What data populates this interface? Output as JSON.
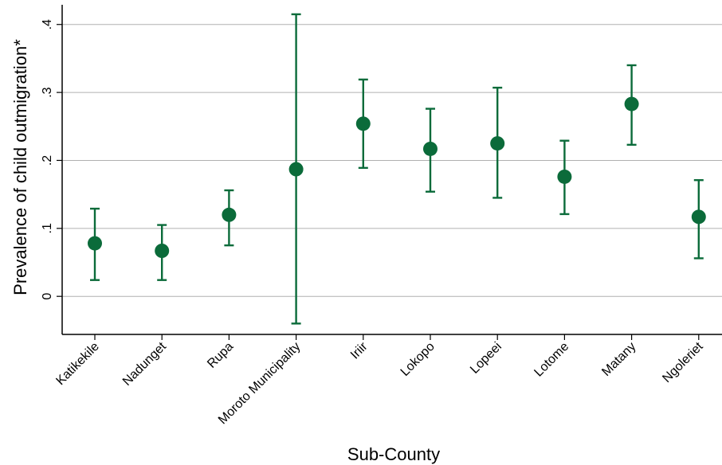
{
  "chart_data": {
    "type": "scatter",
    "title": "",
    "xlabel": "Sub-County",
    "ylabel": "Prevalence of child outmigration*",
    "categories": [
      "Katikekile",
      "Nadunget",
      "Rupa",
      "Moroto Municipality",
      "Iriir",
      "Lokopo",
      "Lopeei",
      "Lotome",
      "Matany",
      "Ngoleriet"
    ],
    "series": [
      {
        "values": [
          0.078,
          0.067,
          0.12,
          0.187,
          0.254,
          0.217,
          0.225,
          0.176,
          0.283,
          0.117
        ],
        "lower": [
          0.024,
          0.024,
          0.075,
          -0.04,
          0.189,
          0.154,
          0.145,
          0.121,
          0.223,
          0.056
        ],
        "upper": [
          0.129,
          0.105,
          0.156,
          0.415,
          0.319,
          0.276,
          0.307,
          0.229,
          0.34,
          0.171
        ]
      }
    ],
    "yticks": [
      0,
      0.1,
      0.2,
      0.3,
      0.4
    ],
    "ytick_labels": [
      "0",
      ".1",
      ".2",
      ".3",
      ".4"
    ],
    "ylim": [
      -0.056,
      0.436
    ],
    "grid": true,
    "legend": "none",
    "color": "#0b6b3a"
  }
}
